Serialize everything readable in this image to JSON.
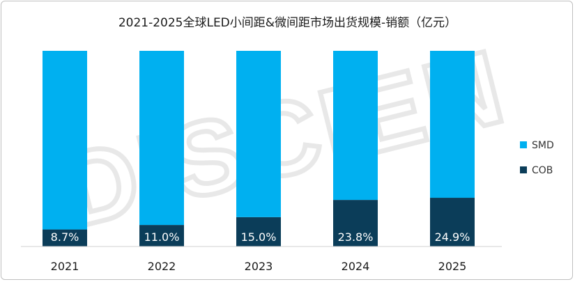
{
  "chart_data": {
    "type": "bar",
    "stacked": true,
    "percent_stacked": true,
    "title": "2021-2025全球LED小间距&微间距市场出货规模-销额（亿元）",
    "categories": [
      "2021",
      "2022",
      "2023",
      "2024",
      "2025"
    ],
    "series": [
      {
        "name": "SMD",
        "values": [
          91.3,
          89.0,
          85.0,
          76.2,
          75.1
        ],
        "color": "#00b0f0"
      },
      {
        "name": "COB",
        "values": [
          8.7,
          11.0,
          15.0,
          23.8,
          24.9
        ],
        "color": "#0b3d59"
      }
    ],
    "data_labels": [
      "8.7%",
      "11.0%",
      "15.0%",
      "23.8%",
      "24.9%"
    ],
    "ylim": [
      0,
      100
    ],
    "legend_position": "right",
    "grid": false,
    "xlabel": "",
    "ylabel": ""
  },
  "watermark": "DISCIEN"
}
